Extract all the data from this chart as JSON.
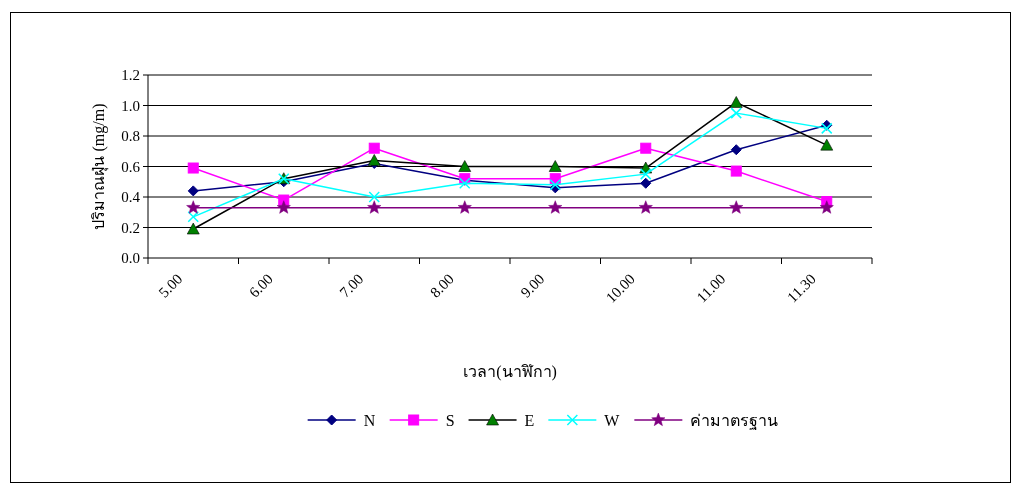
{
  "chart_data": {
    "type": "line",
    "categories": [
      "5.00",
      "6.00",
      "7.00",
      "8.00",
      "9.00",
      "10.00",
      "11.00",
      "11.30"
    ],
    "xlabel": "เวลา(นาฬิกา)",
    "ylabel": "ปริมาณฝุ่น (mg/m)",
    "ylim": [
      0,
      1.2
    ],
    "yticks": [
      {
        "value": 0,
        "label": "0.0"
      },
      {
        "value": 0.2,
        "label": "0.2"
      },
      {
        "value": 0.4,
        "label": "0.4"
      },
      {
        "value": 0.6,
        "label": "0.6"
      },
      {
        "value": 0.8,
        "label": "0.8"
      },
      {
        "value": 1.0,
        "label": "1.0"
      },
      {
        "value": 1.2,
        "label": "1.2"
      }
    ],
    "grid": "y",
    "legend": "bottom",
    "series": [
      {
        "name": "N",
        "color": "#000080",
        "marker": "diamond",
        "values": [
          0.44,
          0.5,
          0.62,
          0.51,
          0.46,
          0.49,
          0.71,
          0.87
        ]
      },
      {
        "name": "S",
        "color": "#ff00ff",
        "marker": "square",
        "values": [
          0.59,
          0.38,
          0.72,
          0.52,
          0.52,
          0.72,
          0.57,
          0.37
        ]
      },
      {
        "name": "E",
        "color": "#000000",
        "marker": "triangle",
        "colors": [
          "#008000",
          "#008000",
          "#008000",
          "#008000",
          "#008000",
          "#008000",
          "#008000",
          "#008000"
        ],
        "values": [
          0.19,
          0.52,
          0.64,
          0.6,
          0.6,
          0.59,
          1.02,
          0.74
        ]
      },
      {
        "name": "W",
        "color": "#00ffff",
        "marker": "cross",
        "values": [
          0.27,
          0.52,
          0.4,
          0.49,
          0.48,
          0.55,
          0.95,
          0.85
        ]
      },
      {
        "name": "ค่ามาตรฐาน",
        "color": "#800080",
        "marker": "star",
        "values": [
          0.33,
          0.33,
          0.33,
          0.33,
          0.33,
          0.33,
          0.33,
          0.33
        ]
      }
    ]
  }
}
